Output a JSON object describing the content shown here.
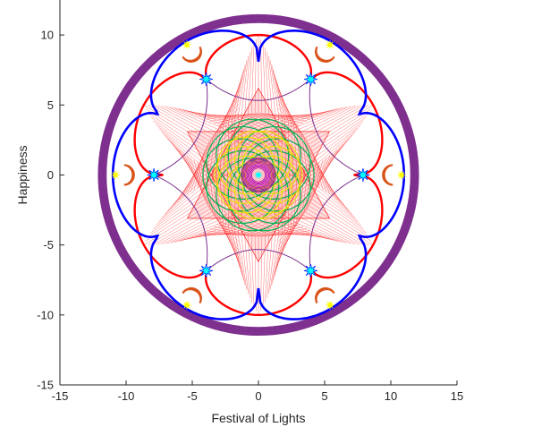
{
  "chart_data": {
    "type": "line",
    "xlabel": "Festival of Lights",
    "ylabel": "Happiness",
    "xlim": [
      -15,
      15
    ],
    "ylim": [
      -15,
      12.5
    ],
    "xticks": [
      -15,
      -10,
      -5,
      0,
      5,
      10,
      15
    ],
    "yticks": [
      -15,
      -10,
      -5,
      0,
      5,
      10
    ],
    "grid": false,
    "box": "left-bottom",
    "colors": {
      "outer_ring": "#7e2f8e",
      "blue_petals": "#0000ff",
      "red_petals": "#ff0000",
      "red_fill": "#ff0000",
      "diyas": "#d95319",
      "flames": "#ffff00",
      "sparkles": "#00ffff",
      "green_rosette": "#00b050",
      "yellow_rosette": "#e6e600",
      "magenta_core": "#b000b0",
      "center_dot": "#00ffff"
    },
    "series": [
      {
        "kind": "outer_ring",
        "radius_outer": 12.1,
        "radius_inner": 11.5
      },
      {
        "kind": "blue_petals",
        "petals": 6,
        "tip_radius": 11,
        "notch_radius": 8.1
      },
      {
        "kind": "red_petals",
        "petals": 6,
        "tip_radius": 10,
        "notch_radius": 7.2
      },
      {
        "kind": "red_fill",
        "petals": 6,
        "tip_radius": 10,
        "inner_radius": 4.4
      },
      {
        "kind": "sparkles",
        "points": [
          [
            7.9,
            0
          ],
          [
            3.95,
            6.84
          ],
          [
            -3.95,
            6.84
          ],
          [
            -7.9,
            0
          ],
          [
            -3.95,
            -6.84
          ],
          [
            3.95,
            -6.84
          ]
        ]
      },
      {
        "kind": "diyas",
        "points": [
          [
            10.3,
            0
          ],
          [
            5.15,
            8.92
          ],
          [
            -5.15,
            8.92
          ],
          [
            -10.3,
            0
          ],
          [
            -5.15,
            -8.92
          ],
          [
            5.15,
            -8.92
          ]
        ]
      },
      {
        "kind": "flames",
        "points": [
          [
            10.2,
            0
          ],
          [
            5.1,
            8.8
          ],
          [
            -5.1,
            8.8
          ],
          [
            -10.2,
            0
          ],
          [
            -5.1,
            -8.8
          ],
          [
            5.1,
            -8.8
          ]
        ]
      },
      {
        "kind": "green_rosette",
        "radius": 4.2
      },
      {
        "kind": "yellow_rosette",
        "radius": 3.3
      },
      {
        "kind": "magenta_core",
        "radius": 1.3
      },
      {
        "kind": "center_dot",
        "point": [
          0,
          0
        ]
      }
    ]
  }
}
